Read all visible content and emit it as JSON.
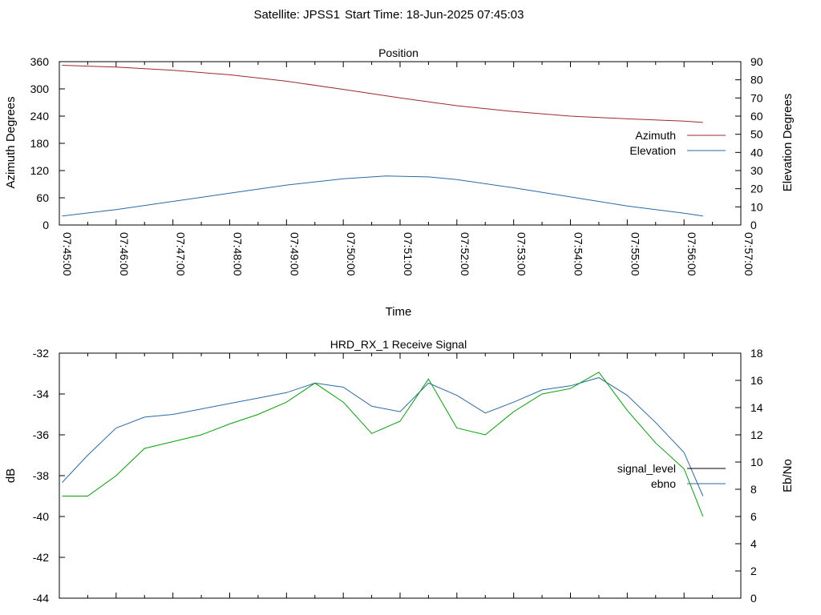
{
  "header": {
    "satellite": "Satellite: JPSS1",
    "start_time": "Start Time: 18-Jun-2025 07:45:03"
  },
  "chart_data": [
    {
      "type": "line",
      "title": "Position",
      "xlabel": "Time",
      "ylabel": "Azimuth Degrees",
      "y2label": "Elevation Degrees",
      "xlim": [
        "07:45:00",
        "07:57:00"
      ],
      "ylim": [
        0,
        360
      ],
      "y2lim": [
        0,
        90
      ],
      "yticks": [
        "0",
        "60",
        "120",
        "180",
        "240",
        "300",
        "360"
      ],
      "y2ticks": [
        "0",
        "10",
        "20",
        "30",
        "40",
        "50",
        "60",
        "70",
        "80",
        "90"
      ],
      "xticks": [
        "07:45:00",
        "07:46:00",
        "07:47:00",
        "07:48:00",
        "07:49:00",
        "07:50:00",
        "07:51:00",
        "07:52:00",
        "07:53:00",
        "07:54:00",
        "07:55:00",
        "07:56:00",
        "07:57:00"
      ],
      "legend_position": "right",
      "series": [
        {
          "name": "Azimuth",
          "axis": "y",
          "color": "#a0282d",
          "x": [
            "07:45:03",
            "07:46:00",
            "07:47:00",
            "07:48:00",
            "07:49:00",
            "07:50:00",
            "07:51:00",
            "07:52:00",
            "07:53:00",
            "07:54:00",
            "07:55:00",
            "07:56:00",
            "07:56:20"
          ],
          "values": [
            352,
            348,
            341,
            331,
            317,
            299,
            280,
            263,
            250,
            240,
            234,
            229,
            226
          ]
        },
        {
          "name": "Elevation",
          "axis": "y2",
          "color": "#2a6aa8",
          "x": [
            "07:45:03",
            "07:46:00",
            "07:47:00",
            "07:48:00",
            "07:49:00",
            "07:50:00",
            "07:50:45",
            "07:51:30",
            "07:52:00",
            "07:53:00",
            "07:54:00",
            "07:55:00",
            "07:56:00",
            "07:56:20"
          ],
          "values": [
            5,
            8.5,
            13,
            17.5,
            22,
            25.5,
            27,
            26.5,
            25,
            20.5,
            15.5,
            10.5,
            6.5,
            5
          ]
        }
      ]
    },
    {
      "type": "line",
      "title": "HRD_RX_1 Receive Signal",
      "xlabel": "",
      "ylabel": "dB",
      "y2label": "Eb/No",
      "ylim": [
        -44,
        -32
      ],
      "y2lim": [
        0,
        18
      ],
      "yticks": [
        "-44",
        "-42",
        "-40",
        "-38",
        "-36",
        "-34",
        "-32"
      ],
      "y2ticks": [
        "0",
        "2",
        "4",
        "6",
        "8",
        "10",
        "12",
        "14",
        "16",
        "18"
      ],
      "legend_position": "right",
      "series": [
        {
          "name": "signal_level",
          "axis": "y",
          "color": "#000000",
          "x": [],
          "values": []
        },
        {
          "name": "ebno",
          "axis": "y2",
          "color": "#2a6aa8",
          "x": [
            "07:45:03",
            "07:45:30",
            "07:46:00",
            "07:46:30",
            "07:47:00",
            "07:47:30",
            "07:48:00",
            "07:48:30",
            "07:49:00",
            "07:49:30",
            "07:50:00",
            "07:50:30",
            "07:51:00",
            "07:51:30",
            "07:52:00",
            "07:52:30",
            "07:53:00",
            "07:53:30",
            "07:54:00",
            "07:54:30",
            "07:55:00",
            "07:55:30",
            "07:56:00",
            "07:56:20"
          ],
          "values": [
            8.5,
            10.5,
            12.5,
            13.3,
            13.5,
            13.9,
            14.3,
            14.7,
            15.1,
            15.8,
            15.5,
            14.1,
            13.7,
            15.8,
            14.9,
            13.6,
            14.4,
            15.3,
            15.6,
            16.2,
            14.9,
            12.9,
            10.7,
            7.5
          ]
        },
        {
          "name": "",
          "axis": "y2",
          "color": "#00a400",
          "x": [
            "07:45:03",
            "07:45:30",
            "07:46:00",
            "07:46:30",
            "07:47:00",
            "07:47:30",
            "07:48:00",
            "07:48:30",
            "07:49:00",
            "07:49:30",
            "07:50:00",
            "07:50:30",
            "07:51:00",
            "07:51:30",
            "07:52:00",
            "07:52:30",
            "07:53:00",
            "07:53:30",
            "07:54:00",
            "07:54:30",
            "07:55:00",
            "07:55:30",
            "07:56:00",
            "07:56:20"
          ],
          "values": [
            7.5,
            7.5,
            9.0,
            11.0,
            11.5,
            12.0,
            12.8,
            13.5,
            14.4,
            15.8,
            14.4,
            12.1,
            13.0,
            16.1,
            12.5,
            12.0,
            13.7,
            15.0,
            15.4,
            16.6,
            13.8,
            11.4,
            9.5,
            6.0
          ]
        }
      ]
    }
  ]
}
